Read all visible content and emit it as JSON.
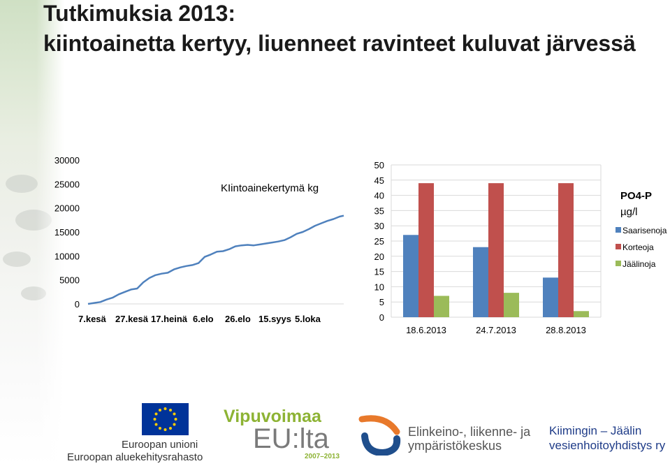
{
  "title_line1": "Tutkimuksia 2013:",
  "title_line2": "kiintoainetta kertyy, liuenneet ravinteet kuluvat järvessä",
  "chart_data": [
    {
      "type": "line",
      "title": "KIintoainekertymä kg",
      "x_tick_labels": [
        "7.kesä",
        "27.kesä",
        "17.heinä",
        "6.elo",
        "26.elo",
        "15.syys",
        "5.loka"
      ],
      "y_tick_labels": [
        "0",
        "5000",
        "10000",
        "15000",
        "20000",
        "25000",
        "30000"
      ],
      "ylim": [
        0,
        30000
      ],
      "y_ticks": [
        0,
        5000,
        10000,
        15000,
        20000,
        25000,
        30000
      ],
      "x_day_range": [
        0,
        125
      ],
      "series": [
        {
          "x": [
            0,
            3,
            6,
            9,
            12,
            15,
            18,
            21,
            24,
            27,
            30,
            33,
            36,
            39,
            42,
            45,
            48,
            51,
            54,
            57,
            60,
            63,
            66,
            69,
            72,
            75,
            78,
            81,
            84,
            87,
            90,
            93,
            96,
            99,
            102,
            105,
            108,
            111,
            114,
            117,
            120,
            123,
            125
          ],
          "values": [
            0,
            200,
            400,
            900,
            1300,
            2000,
            2500,
            3000,
            3200,
            4500,
            5400,
            6000,
            6300,
            6500,
            7200,
            7600,
            7900,
            8100,
            8500,
            9800,
            10300,
            10900,
            11000,
            11400,
            12000,
            12200,
            12300,
            12200,
            12400,
            12600,
            12800,
            13000,
            13300,
            13900,
            14600,
            15000,
            15600,
            16300,
            16800,
            17300,
            17700,
            18200,
            18400
          ],
          "color": "#4f81bd"
        }
      ]
    },
    {
      "type": "bar",
      "title": "PO4-P",
      "subtitle": "µg/l",
      "categories": [
        "18.6.2013",
        "24.7.2013",
        "28.8.2013"
      ],
      "y_tick_labels": [
        "0",
        "5",
        "10",
        "15",
        "20",
        "25",
        "30",
        "35",
        "40",
        "45",
        "50"
      ],
      "ylim": [
        0,
        50
      ],
      "y_ticks": [
        0,
        5,
        10,
        15,
        20,
        25,
        30,
        35,
        40,
        45,
        50
      ],
      "grid": true,
      "legend_position": "right",
      "series": [
        {
          "name": "Saarisenoja",
          "values": [
            27,
            23,
            13
          ],
          "color": "#4f81bd"
        },
        {
          "name": "Korteoja",
          "values": [
            44,
            44,
            44
          ],
          "color": "#c0504d"
        },
        {
          "name": "Jäälinoja",
          "values": [
            7,
            8,
            2
          ],
          "color": "#9bbb59"
        }
      ]
    }
  ],
  "logos": {
    "eu_line1": "Euroopan unioni",
    "eu_line2": "Euroopan aluekehitysrahasto",
    "vipu_top": "Vipuvoimaa",
    "vipu_main": "EU:lta",
    "vipu_years": "2007–2013",
    "ely_line1": "Elinkeino-, liikenne- ja",
    "ely_line2": "ympäristökeskus",
    "kiim_line1": "Kiimingin – Jäälin",
    "kiim_line2": "vesienhoitoyhdistys ry",
    "colors": {
      "eu_blue": "#003399",
      "eu_star": "#ffcc00",
      "vipu_green": "#8db334",
      "ely_blue": "#1f4e8c",
      "ely_orange": "#e8792b",
      "kiim_blue": "#1f3c88"
    }
  }
}
